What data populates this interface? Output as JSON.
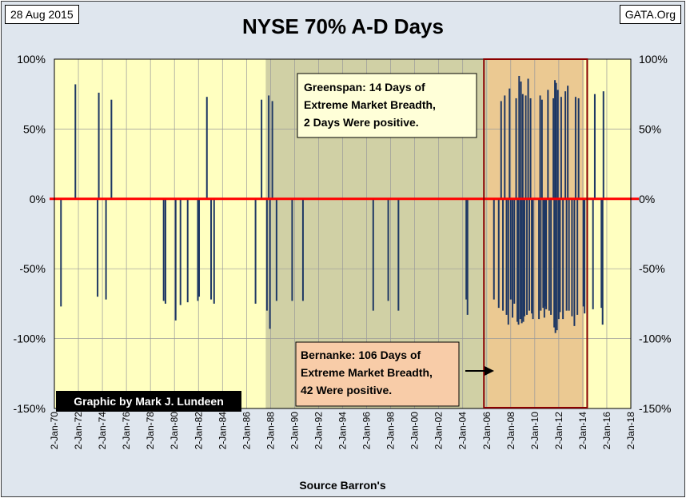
{
  "header": {
    "date": "28 Aug 2015",
    "source": "GATA.Org"
  },
  "chart_data": {
    "type": "bar",
    "title": "NYSE 70% A-D Days",
    "xlabel": "Source Barron's",
    "ylabel": "",
    "ylim": [
      -150,
      100
    ],
    "y_ticks": [
      "100%",
      "50%",
      "0%",
      "-50%",
      "-100%",
      "-150%"
    ],
    "y_tick_values": [
      100,
      50,
      0,
      -50,
      -100,
      -150
    ],
    "x_ticks": [
      "2-Jan-70",
      "2-Jan-72",
      "2-Jan-74",
      "2-Jan-76",
      "2-Jan-78",
      "2-Jan-80",
      "2-Jan-82",
      "2-Jan-84",
      "2-Jan-86",
      "2-Jan-88",
      "2-Jan-90",
      "2-Jan-92",
      "2-Jan-94",
      "2-Jan-96",
      "2-Jan-98",
      "2-Jan-00",
      "2-Jan-02",
      "2-Jan-04",
      "2-Jan-06",
      "2-Jan-08",
      "2-Jan-10",
      "2-Jan-12",
      "2-Jan-14",
      "2-Jan-16",
      "2-Jan-18"
    ],
    "x_range": [
      1970,
      2018
    ],
    "grid": true,
    "zero_line_color": "#ff0000",
    "bar_color": "#1f3864",
    "shaded_periods": [
      {
        "label": "Greenspan",
        "start": 1987.6,
        "end": 2006.1,
        "color": "#c8c8a0"
      },
      {
        "label": "Bernanke",
        "start": 2006.1,
        "end": 2014.1,
        "color": "#e8c08a"
      }
    ],
    "annotations": {
      "greenspan": [
        "Greenspan: 14 Days of",
        "Extreme Market Breadth,",
        "2 Days Were positive."
      ],
      "bernanke": [
        "Bernanke:  106 Days of",
        "Extreme Market Breadth,",
        "42 Were positive."
      ],
      "credit": "Graphic by Mark J. Lundeen"
    },
    "series": [
      {
        "values": [
          [
            1970.55,
            -77
          ],
          [
            1971.75,
            82
          ],
          [
            1973.6,
            -70
          ],
          [
            1973.7,
            76
          ],
          [
            1974.3,
            -72
          ],
          [
            1974.75,
            71
          ],
          [
            1979.1,
            -73
          ],
          [
            1979.25,
            -75
          ],
          [
            1980.1,
            -87
          ],
          [
            1980.5,
            -76
          ],
          [
            1981.1,
            -74
          ],
          [
            1981.95,
            -73
          ],
          [
            1982.05,
            -70
          ],
          [
            1982.7,
            73
          ],
          [
            1983.05,
            -72
          ],
          [
            1983.3,
            -75
          ],
          [
            1986.75,
            -75
          ],
          [
            1987.25,
            71
          ],
          [
            1987.7,
            -80
          ],
          [
            1987.85,
            74
          ],
          [
            1987.95,
            -93
          ],
          [
            1988.15,
            70
          ],
          [
            1988.5,
            -73
          ],
          [
            1989.8,
            -73
          ],
          [
            1990.7,
            -73
          ],
          [
            1996.55,
            -80
          ],
          [
            1997.8,
            -73
          ],
          [
            1998.65,
            -80
          ],
          [
            2004.3,
            -72
          ],
          [
            2004.4,
            -83
          ],
          [
            2006.6,
            -72
          ],
          [
            2007.0,
            -78
          ],
          [
            2007.2,
            70
          ],
          [
            2007.35,
            -80
          ],
          [
            2007.5,
            74
          ],
          [
            2007.65,
            -83
          ],
          [
            2007.8,
            -90
          ],
          [
            2007.9,
            79
          ],
          [
            2008.0,
            -72
          ],
          [
            2008.15,
            -85
          ],
          [
            2008.3,
            -75
          ],
          [
            2008.45,
            72
          ],
          [
            2008.55,
            -88
          ],
          [
            2008.65,
            -90
          ],
          [
            2008.7,
            88
          ],
          [
            2008.8,
            -86
          ],
          [
            2008.85,
            84
          ],
          [
            2008.92,
            -89
          ],
          [
            2009.0,
            75
          ],
          [
            2009.05,
            -88
          ],
          [
            2009.15,
            -84
          ],
          [
            2009.25,
            74
          ],
          [
            2009.35,
            -83
          ],
          [
            2009.45,
            86
          ],
          [
            2009.55,
            -80
          ],
          [
            2009.65,
            72
          ],
          [
            2009.75,
            -82
          ],
          [
            2009.85,
            -86
          ],
          [
            2010.35,
            -86
          ],
          [
            2010.45,
            74
          ],
          [
            2010.5,
            -80
          ],
          [
            2010.6,
            71
          ],
          [
            2010.7,
            -78
          ],
          [
            2010.8,
            -85
          ],
          [
            2010.9,
            -77
          ],
          [
            2010.95,
            -79
          ],
          [
            2011.1,
            78
          ],
          [
            2011.2,
            -80
          ],
          [
            2011.35,
            -83
          ],
          [
            2011.55,
            72
          ],
          [
            2011.62,
            -92
          ],
          [
            2011.68,
            85
          ],
          [
            2011.72,
            -96
          ],
          [
            2011.78,
            83
          ],
          [
            2011.85,
            -94
          ],
          [
            2011.92,
            78
          ],
          [
            2012.0,
            -86
          ],
          [
            2012.1,
            -81
          ],
          [
            2012.2,
            73
          ],
          [
            2012.35,
            -86
          ],
          [
            2012.55,
            77
          ],
          [
            2012.65,
            -80
          ],
          [
            2012.75,
            81
          ],
          [
            2012.85,
            -80
          ],
          [
            2013.1,
            -84
          ],
          [
            2013.3,
            -91
          ],
          [
            2013.4,
            73
          ],
          [
            2013.55,
            -83
          ],
          [
            2013.65,
            72
          ],
          [
            2014.05,
            -77
          ],
          [
            2014.15,
            -82
          ],
          [
            2014.85,
            -79
          ],
          [
            2015.0,
            75
          ],
          [
            2015.55,
            -78
          ],
          [
            2015.65,
            -90
          ],
          [
            2015.72,
            77
          ]
        ]
      }
    ]
  }
}
